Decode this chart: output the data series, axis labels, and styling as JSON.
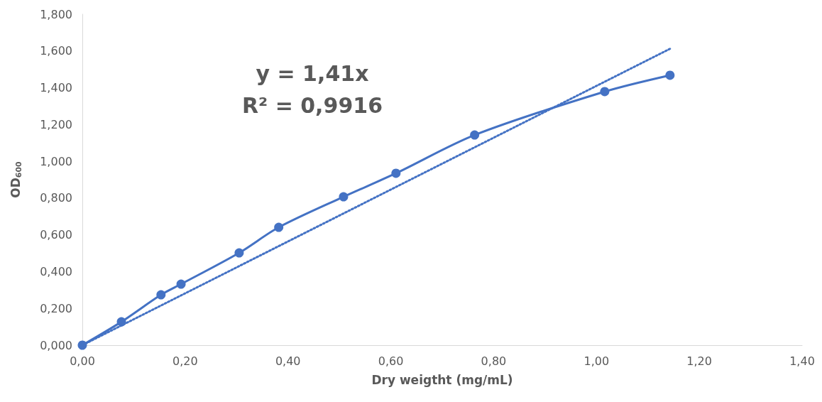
{
  "chart_data": {
    "type": "line",
    "xlabel": "Dry weigtht (mg/mL)",
    "ylabel": "OD$_{600}$",
    "annotations": [
      "y = 1,41x",
      "R² = 0,9916"
    ],
    "x": [
      0,
      0.076,
      0.153,
      0.192,
      0.305,
      0.382,
      0.508,
      0.61,
      0.763,
      1.016,
      1.143
    ],
    "series": [
      {
        "color": "#4472c4",
        "values": [
          0,
          0.127,
          0.274,
          0.332,
          0.502,
          0.641,
          0.807,
          0.935,
          1.143,
          1.379,
          1.468
        ],
        "marker": "circle",
        "line_style": "solid"
      },
      {
        "color": "#4472c4",
        "x": [
          0,
          1.143
        ],
        "values": [
          0,
          1.612
        ],
        "marker": "none",
        "line_style": "dotted"
      }
    ],
    "xlim": [
      0,
      1.4
    ],
    "xticks": [
      {
        "value": 0,
        "label": "0,00"
      },
      {
        "value": 0.2,
        "label": "0,20"
      },
      {
        "value": 0.4,
        "label": "0,40"
      },
      {
        "value": 0.6,
        "label": "0,60"
      },
      {
        "value": 0.8,
        "label": "0,80"
      },
      {
        "value": 1,
        "label": "1,00"
      },
      {
        "value": 1.2,
        "label": "1,20"
      },
      {
        "value": 1.4,
        "label": "1,40"
      }
    ],
    "ylim": [
      0,
      1.8
    ],
    "yticks": [
      {
        "value": 0,
        "label": "0,000"
      },
      {
        "value": 0.2,
        "label": "0,200"
      },
      {
        "value": 0.4,
        "label": "0,400"
      },
      {
        "value": 0.6,
        "label": "0,600"
      },
      {
        "value": 0.8,
        "label": "0,800"
      },
      {
        "value": 1,
        "label": "1,000"
      },
      {
        "value": 1.2,
        "label": "1,200"
      },
      {
        "value": 1.4,
        "label": "1,400"
      },
      {
        "value": 1.6,
        "label": "1,600"
      },
      {
        "value": 1.8,
        "label": "1,800"
      }
    ],
    "grid": false
  }
}
